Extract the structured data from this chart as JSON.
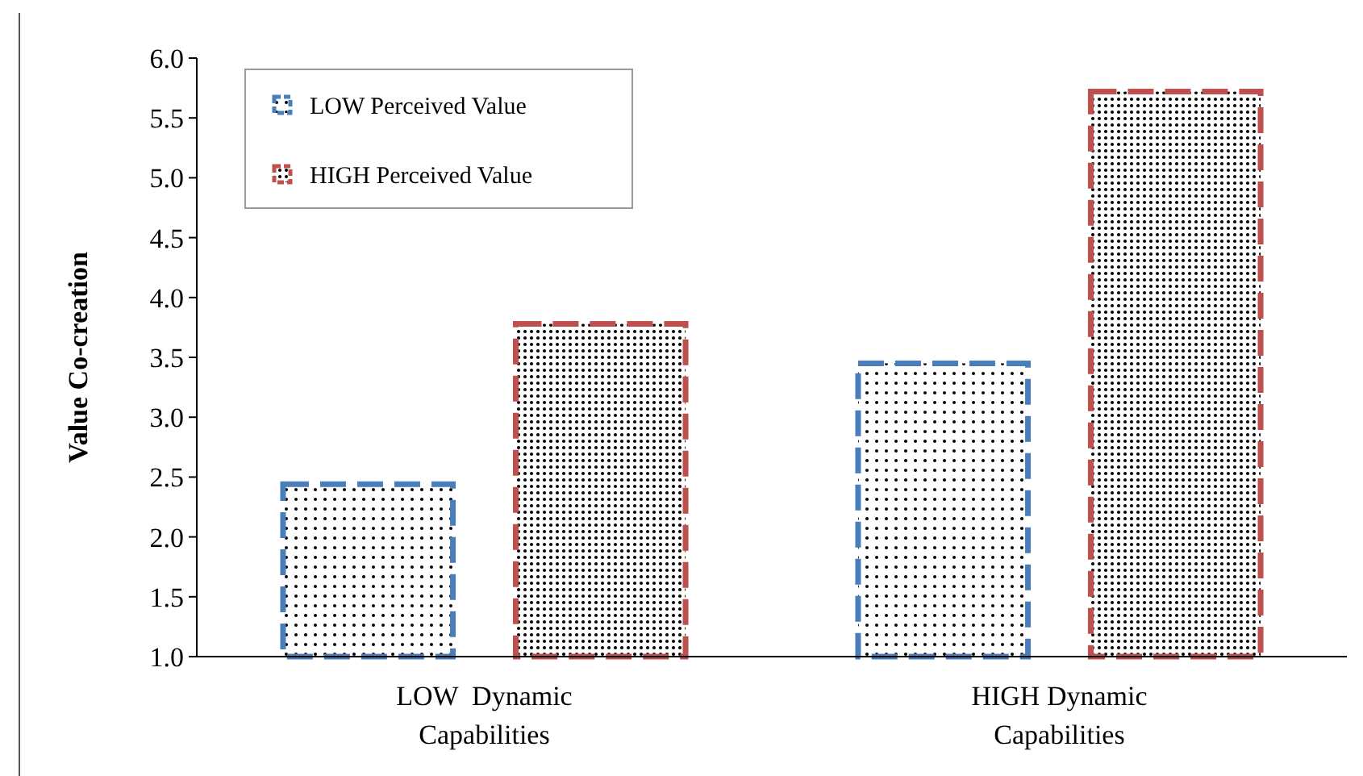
{
  "chart_data": {
    "type": "bar",
    "ylabel": "Value Co-creation",
    "categories": [
      "LOW  Dynamic\nCapabilities",
      "HIGH Dynamic\nCapabilities"
    ],
    "series": [
      {
        "name": "LOW Perceived Value",
        "color": "#4a7ebb",
        "values": [
          2.44,
          3.45
        ]
      },
      {
        "name": "HIGH Perceived Value",
        "color": "#c0504d",
        "values": [
          3.78,
          5.72
        ]
      }
    ],
    "ylim": [
      1,
      6
    ],
    "yticks": [
      {
        "value": 1,
        "label": "1.0"
      },
      {
        "value": 1.5,
        "label": "1.5"
      },
      {
        "value": 2,
        "label": "2.0"
      },
      {
        "value": 2.5,
        "label": "2.5"
      },
      {
        "value": 3,
        "label": "3.0"
      },
      {
        "value": 3.5,
        "label": "3.5"
      },
      {
        "value": 4,
        "label": "4.0"
      },
      {
        "value": 4.5,
        "label": "4.5"
      },
      {
        "value": 5,
        "label": "5.0"
      },
      {
        "value": 5.5,
        "label": "5.5"
      },
      {
        "value": 6,
        "label": "6.0"
      }
    ],
    "grid": false,
    "legend": "top left",
    "line_style": "dashed"
  }
}
